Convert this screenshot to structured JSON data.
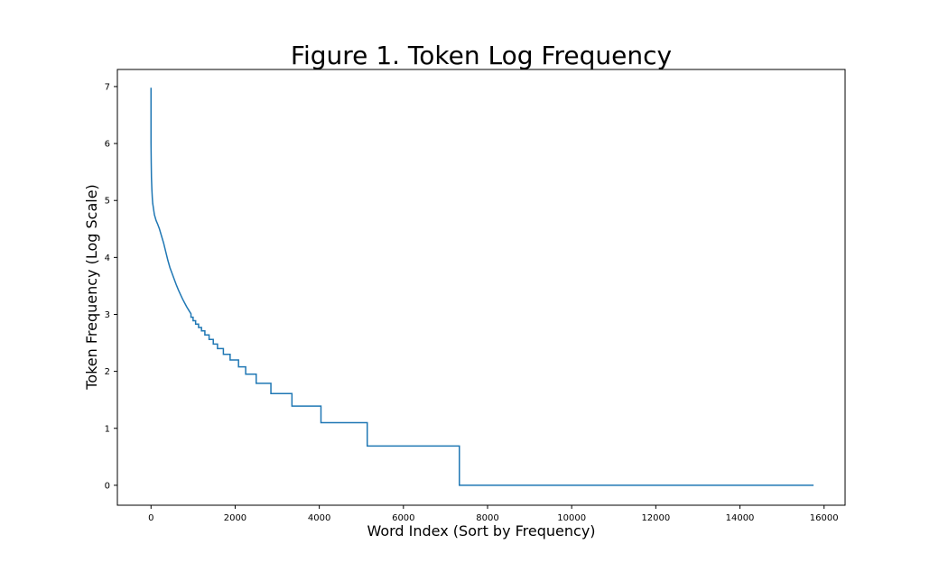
{
  "chart_data": {
    "type": "line",
    "title": "Figure 1. Token Log Frequency",
    "xlabel": "Word Index (Sort by Frequency)",
    "ylabel": "Token Frequency (Log Scale)",
    "xlim": [
      -800,
      16500
    ],
    "ylim": [
      -0.35,
      7.3
    ],
    "xticks": [
      0,
      2000,
      4000,
      6000,
      8000,
      10000,
      12000,
      14000,
      16000
    ],
    "yticks": [
      0,
      1,
      2,
      3,
      4,
      5,
      6,
      7
    ],
    "grid": false,
    "legend": "none",
    "line_color": "#1f77b4",
    "series": [
      {
        "x": [
          0,
          0,
          5,
          10,
          20,
          30,
          40,
          60,
          80,
          120,
          160,
          200,
          260,
          300,
          350,
          400,
          450,
          500,
          550,
          600,
          650,
          700,
          750,
          800,
          850,
          900,
          950,
          950,
          1000,
          1000,
          1060,
          1060,
          1130,
          1130,
          1200,
          1200,
          1280,
          1280,
          1380,
          1380,
          1480,
          1480,
          1580,
          1580,
          1720,
          1720,
          1880,
          1880,
          2080,
          2080,
          2250,
          2250,
          2500,
          2500,
          2850,
          2850,
          3350,
          3350,
          4040,
          4040,
          5140,
          5140,
          7330,
          7330,
          15750
        ],
        "y": [
          6.98,
          6.0,
          5.65,
          5.4,
          5.2,
          5.05,
          4.95,
          4.85,
          4.75,
          4.65,
          4.58,
          4.5,
          4.35,
          4.25,
          4.1,
          3.95,
          3.82,
          3.72,
          3.62,
          3.52,
          3.43,
          3.35,
          3.27,
          3.2,
          3.13,
          3.07,
          3.01,
          2.95,
          2.95,
          2.89,
          2.89,
          2.83,
          2.83,
          2.77,
          2.77,
          2.71,
          2.71,
          2.64,
          2.64,
          2.56,
          2.56,
          2.48,
          2.48,
          2.4,
          2.4,
          2.3,
          2.3,
          2.2,
          2.2,
          2.08,
          2.08,
          1.95,
          1.95,
          1.79,
          1.79,
          1.61,
          1.61,
          1.39,
          1.39,
          1.1,
          1.1,
          0.69,
          0.69,
          0.0,
          0.0
        ]
      }
    ]
  }
}
